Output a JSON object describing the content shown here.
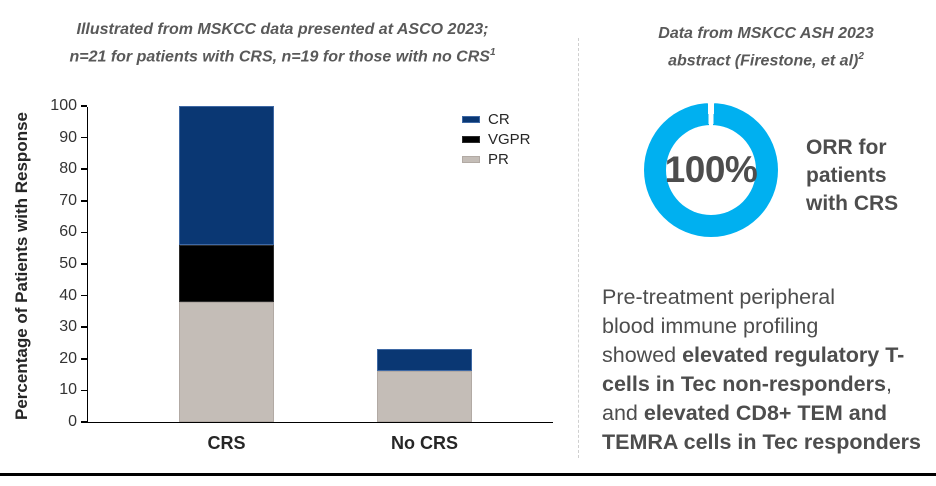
{
  "left_panel": {
    "title": {
      "line1": "Illustrated from MSKCC data presented at ASCO 2023;",
      "line2": "n=21 for patients with CRS, n=19 for those with no CRS",
      "line2_sup": "1"
    }
  },
  "right_panel": {
    "title": {
      "line1": "Data from MSKCC ASH 2023",
      "line2": "abstract (Firestone, et al)",
      "line2_sup": "2"
    },
    "paragraph": {
      "lines": [
        [
          {
            "t": "Pre-treatment peripheral",
            "b": 0
          }
        ],
        [
          {
            "t": "blood immune profiling",
            "b": 0
          }
        ],
        [
          {
            "t": "showed ",
            "b": 0
          },
          {
            "t": "elevated regulatory T-",
            "b": 1
          }
        ],
        [
          {
            "t": "cells in Tec non-responders",
            "b": 1
          },
          {
            "t": ",",
            "b": 0
          }
        ],
        [
          {
            "t": "and ",
            "b": 0
          },
          {
            "t": "elevated CD8+ TEM and",
            "b": 1
          }
        ],
        [
          {
            "t": "TEMRA cells in Tec responders",
            "b": 1
          }
        ]
      ]
    }
  },
  "chart_data": [
    {
      "type": "bar",
      "stacked": true,
      "title": "Illustrated from MSKCC data presented at ASCO 2023; n=21 for patients with CRS, n=19 for those with no CRS(1)",
      "categories": [
        "CRS",
        "No CRS"
      ],
      "series": [
        {
          "name": "PR",
          "color": "#c4bdb7",
          "edge": "#b2aaa4",
          "values": [
            38,
            16
          ]
        },
        {
          "name": "VGPR",
          "color": "#000000",
          "edge": "#2b2b2b",
          "values": [
            18,
            0
          ]
        },
        {
          "name": "CR",
          "color": "#0a3773",
          "edge": "#3e68a4",
          "values": [
            44,
            7
          ]
        }
      ],
      "ylabel": "Percentage of Patients with Response",
      "xlabel": "",
      "ylim": [
        0,
        100
      ],
      "ytick_step": 10,
      "legend": [
        "CR",
        "VGPR",
        "PR"
      ],
      "legend_position": "upper-right",
      "grid": false
    },
    {
      "type": "donut",
      "title": "Data from MSKCC ASH 2023 abstract (Firestone, et al)(2)",
      "value": 100,
      "center_label": "100%",
      "caption": "ORR for patients with CRS",
      "color": "#00b0f0",
      "gap_position": "top"
    }
  ],
  "colors": {
    "cr_navy": "#0a3773",
    "vgpr_black": "#000000",
    "pr_gray": "#c4bdb7",
    "donut_cyan": "#00b0f0",
    "title_gray": "#595959",
    "text_gray": "#4d4d4d",
    "axis_black": "#000000"
  }
}
